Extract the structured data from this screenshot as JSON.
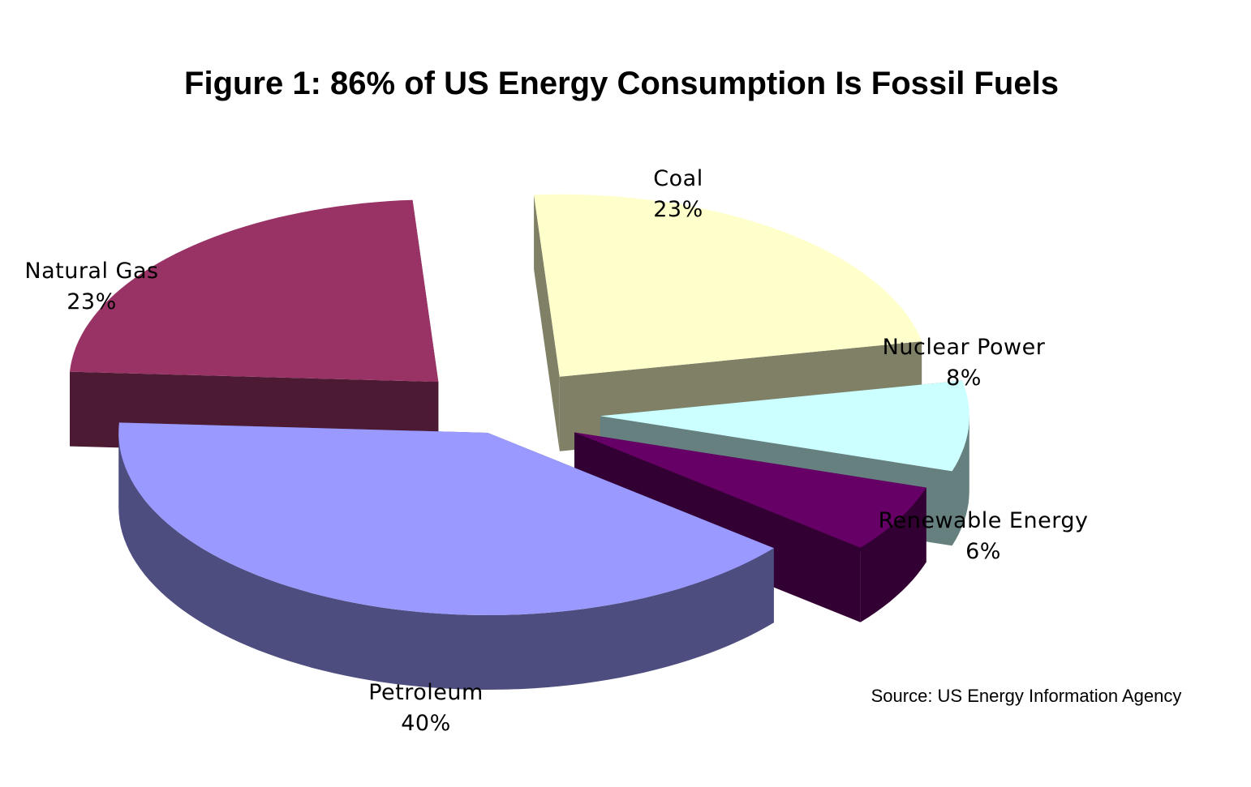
{
  "chart_data": {
    "type": "pie",
    "title": "Figure 1: 86% of US Energy Consumption Is Fossil Fuels",
    "slices": [
      {
        "name": "Coal",
        "value": 23,
        "value_label": "23%",
        "color": "#FFFFCC",
        "side_color": "#808066"
      },
      {
        "name": "Nuclear Power",
        "value": 8,
        "value_label": "8%",
        "color": "#CCFFFF",
        "side_color": "#668080"
      },
      {
        "name": "Renewable Energy",
        "value": 6,
        "value_label": "6%",
        "color": "#660066",
        "side_color": "#330033"
      },
      {
        "name": "Petroleum",
        "value": 40,
        "value_label": "40%",
        "color": "#9999FF",
        "side_color": "#4D4D7F"
      },
      {
        "name": "Natural Gas",
        "value": 23,
        "value_label": "23%",
        "color": "#993366",
        "side_color": "#4D1A33"
      }
    ],
    "style": "3d-exploded",
    "source": "Source: US Energy Information Agency"
  }
}
